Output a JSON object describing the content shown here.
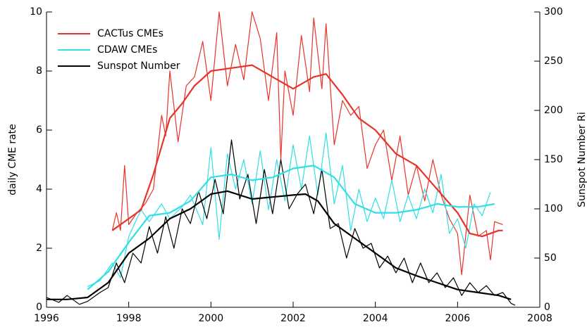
{
  "chart_data": {
    "type": "line",
    "ylabel": "daily CME rate",
    "y2label": "Sunspot Number Ri",
    "xlim": [
      1996,
      2008
    ],
    "xticks": [
      1996,
      1998,
      2000,
      2002,
      2004,
      2006,
      2008
    ],
    "ylim": [
      0,
      10
    ],
    "yticks": [
      0,
      2,
      4,
      6,
      8,
      10
    ],
    "y2lim": [
      0,
      300
    ],
    "y2ticks": [
      0,
      50,
      100,
      150,
      200,
      250,
      300
    ],
    "legend": "upper left",
    "series": [
      {
        "name": "CACTus CMEs",
        "color": "#e8332a",
        "x": [
          1997.6,
          1997.7,
          1997.8,
          1997.9,
          1998.0,
          1998.2,
          1998.4,
          1998.6,
          1998.8,
          1998.9,
          1999.0,
          1999.2,
          1999.4,
          1999.6,
          1999.8,
          2000.0,
          2000.2,
          2000.4,
          2000.6,
          2000.8,
          2001.0,
          2001.2,
          2001.4,
          2001.6,
          2001.7,
          2001.8,
          2002.0,
          2002.2,
          2002.4,
          2002.5,
          2002.7,
          2002.8,
          2003.0,
          2003.2,
          2003.4,
          2003.6,
          2003.8,
          2004.0,
          2004.2,
          2004.4,
          2004.6,
          2004.8,
          2005.0,
          2005.2,
          2005.4,
          2005.6,
          2005.8,
          2006.0,
          2006.1,
          2006.3,
          2006.5,
          2006.7,
          2006.8,
          2006.9,
          2007.1
        ],
        "values": [
          2.6,
          3.2,
          2.6,
          4.8,
          2.8,
          3.2,
          3.5,
          4.0,
          6.5,
          5.8,
          8.0,
          5.6,
          7.5,
          7.8,
          9.0,
          7.0,
          10.0,
          7.5,
          8.9,
          7.7,
          10.0,
          9.1,
          7.0,
          9.3,
          5.0,
          8.0,
          6.5,
          9.2,
          7.3,
          9.8,
          7.4,
          9.6,
          5.5,
          7.0,
          6.5,
          6.8,
          4.7,
          5.5,
          6.0,
          4.3,
          5.8,
          3.8,
          4.8,
          3.6,
          5.0,
          3.8,
          3.0,
          2.5,
          1.1,
          3.8,
          2.4,
          2.6,
          1.6,
          2.9,
          2.8
        ],
        "smoothed_x": [
          1997.6,
          1998.0,
          1998.3,
          1998.6,
          1999.0,
          1999.3,
          1999.6,
          2000.0,
          2000.5,
          2001.0,
          2001.5,
          2002.0,
          2002.5,
          2002.8,
          2003.2,
          2003.6,
          2004.0,
          2004.5,
          2005.0,
          2005.5,
          2006.0,
          2006.3,
          2006.6,
          2007.0,
          2007.1
        ],
        "smoothed": [
          2.6,
          3.0,
          3.3,
          4.5,
          6.4,
          6.9,
          7.5,
          8.0,
          8.1,
          8.2,
          7.8,
          7.4,
          7.8,
          7.9,
          7.2,
          6.4,
          6.0,
          5.2,
          4.8,
          4.0,
          3.2,
          2.5,
          2.4,
          2.6,
          2.6
        ]
      },
      {
        "name": "CDAW CMEs",
        "color": "#2ee0e6",
        "x": [
          1997.0,
          1997.3,
          1997.6,
          1997.8,
          1998.0,
          1998.3,
          1998.5,
          1998.8,
          1999.0,
          1999.3,
          1999.5,
          1999.8,
          2000.0,
          2000.2,
          2000.4,
          2000.6,
          2000.8,
          2001.0,
          2001.2,
          2001.4,
          2001.6,
          2001.8,
          2002.0,
          2002.2,
          2002.4,
          2002.6,
          2002.8,
          2003.0,
          2003.2,
          2003.4,
          2003.6,
          2003.8,
          2004.0,
          2004.2,
          2004.4,
          2004.6,
          2004.8,
          2005.0,
          2005.2,
          2005.4,
          2005.6,
          2005.8,
          2006.0,
          2006.2,
          2006.4,
          2006.6,
          2006.8
        ],
        "values": [
          0.7,
          0.9,
          1.5,
          1.0,
          2.4,
          3.3,
          2.9,
          3.5,
          3.0,
          3.4,
          3.8,
          2.8,
          5.4,
          2.3,
          5.2,
          4.0,
          5.0,
          3.5,
          5.3,
          3.3,
          5.0,
          3.6,
          5.5,
          4.0,
          5.8,
          3.8,
          5.9,
          3.5,
          4.8,
          2.6,
          4.0,
          2.9,
          3.7,
          3.0,
          4.3,
          2.9,
          3.8,
          3.0,
          4.0,
          3.2,
          4.5,
          2.5,
          3.0,
          2.0,
          3.5,
          3.1,
          3.9
        ],
        "smoothed_x": [
          1997.0,
          1997.5,
          1998.0,
          1998.5,
          1999.0,
          1999.5,
          2000.0,
          2000.5,
          2001.0,
          2001.5,
          2002.0,
          2002.5,
          2003.0,
          2003.5,
          2004.0,
          2004.5,
          2005.0,
          2005.5,
          2006.0,
          2006.5,
          2006.9
        ],
        "smoothed": [
          0.6,
          1.2,
          2.2,
          3.1,
          3.2,
          3.6,
          4.4,
          4.5,
          4.3,
          4.4,
          4.7,
          4.8,
          4.4,
          3.5,
          3.2,
          3.2,
          3.3,
          3.5,
          3.4,
          3.4,
          3.5
        ]
      },
      {
        "name": "Sunspot Number",
        "color": "#000000",
        "axis": "y2",
        "x": [
          1996.0,
          1996.3,
          1996.5,
          1996.8,
          1997.0,
          1997.3,
          1997.5,
          1997.7,
          1997.9,
          1998.1,
          1998.3,
          1998.5,
          1998.7,
          1998.9,
          1999.1,
          1999.3,
          1999.5,
          1999.7,
          1999.9,
          2000.1,
          2000.3,
          2000.5,
          2000.7,
          2000.9,
          2001.1,
          2001.3,
          2001.5,
          2001.7,
          2001.9,
          2002.1,
          2002.3,
          2002.5,
          2002.7,
          2002.9,
          2003.1,
          2003.3,
          2003.5,
          2003.7,
          2003.9,
          2004.1,
          2004.3,
          2004.5,
          2004.7,
          2004.9,
          2005.1,
          2005.3,
          2005.5,
          2005.7,
          2005.9,
          2006.1,
          2006.3,
          2006.5,
          2006.7,
          2006.9,
          2007.1,
          2007.3,
          2007.4
        ],
        "values": [
          10,
          5,
          12,
          3,
          6,
          15,
          20,
          45,
          25,
          55,
          45,
          82,
          55,
          92,
          60,
          100,
          85,
          118,
          90,
          130,
          95,
          170,
          110,
          135,
          85,
          140,
          95,
          150,
          100,
          115,
          125,
          95,
          140,
          80,
          85,
          50,
          80,
          60,
          65,
          40,
          52,
          35,
          50,
          25,
          45,
          25,
          35,
          20,
          30,
          12,
          25,
          15,
          22,
          12,
          15,
          4,
          2
        ],
        "smoothed_x": [
          1996.0,
          1996.5,
          1997.0,
          1997.5,
          1998.0,
          1998.5,
          1999.0,
          1999.5,
          2000.0,
          2000.4,
          2001.0,
          2001.5,
          2002.0,
          2002.3,
          2002.6,
          2003.0,
          2003.5,
          2004.0,
          2004.5,
          2005.0,
          2005.5,
          2006.0,
          2006.5,
          2007.0,
          2007.3
        ],
        "smoothed": [
          8,
          8,
          10,
          25,
          55,
          70,
          90,
          100,
          115,
          118,
          110,
          112,
          114,
          115,
          108,
          85,
          70,
          55,
          40,
          32,
          25,
          18,
          15,
          12,
          8
        ]
      }
    ]
  }
}
